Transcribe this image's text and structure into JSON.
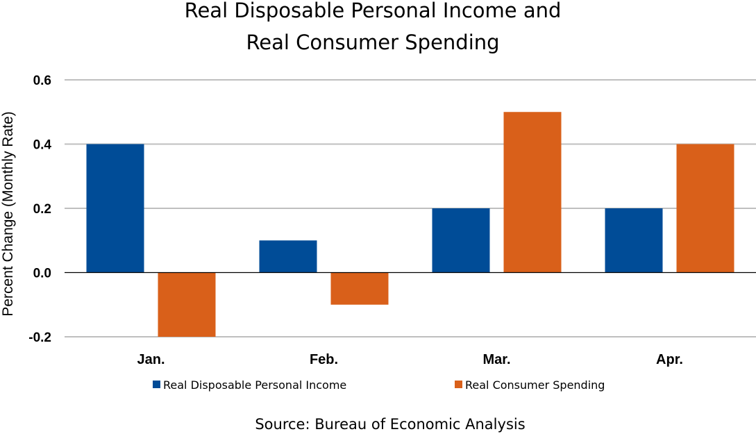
{
  "chart_data": {
    "type": "bar",
    "title_lines": [
      "Real Disposable Personal Income and",
      "Real Consumer Spending"
    ],
    "ylabel": "Percent Change (Monthly Rate)",
    "xlabel": "",
    "categories": [
      "Jan.",
      "Feb.",
      "Mar.",
      "Apr."
    ],
    "series": [
      {
        "name": "Real Disposable Personal Income",
        "values": [
          0.4,
          0.1,
          0.2,
          0.2
        ],
        "color": "#004C97"
      },
      {
        "name": "Real Consumer Spending",
        "values": [
          -0.2,
          -0.1,
          0.5,
          0.4
        ],
        "color": "#D9601A"
      }
    ],
    "ylim": [
      -0.2,
      0.6
    ],
    "yticks": [
      "0.6",
      "0.4",
      "0.2",
      "0.0",
      "-0.2"
    ],
    "grid": true,
    "legend_position": "bottom",
    "source": "Source:  Bureau of Economic Analysis"
  }
}
